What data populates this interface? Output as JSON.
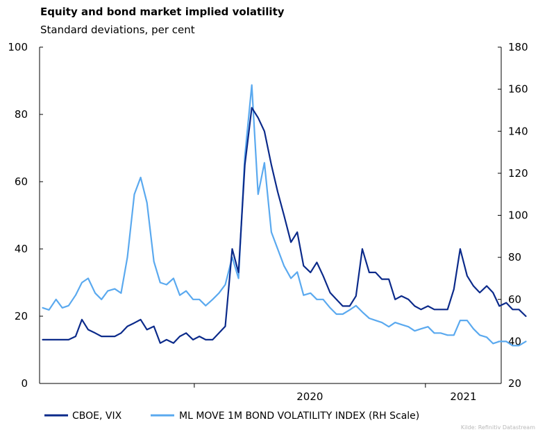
{
  "title": "Equity and bond market implied volatility",
  "subtitle": "Standard deviations, per cent",
  "source": "Kilde: Refinitiv Datastream",
  "colors": {
    "vix": "#0b2a8a",
    "move": "#5aa9ef",
    "axis": "#000000"
  },
  "chart_data": {
    "type": "line",
    "title": "Equity and bond market implied volatility",
    "subtitle": "Standard deviations, per cent",
    "x_unit": "month",
    "x_range": [
      "2019-05",
      "2021-05"
    ],
    "x_tick_labels": [
      {
        "label": "2020",
        "value": "2020-01"
      },
      {
        "label": "2021",
        "value": "2021-01"
      }
    ],
    "y_left": {
      "lim": [
        0,
        100
      ],
      "ticks": [
        0,
        20,
        40,
        60,
        80,
        100
      ]
    },
    "y_right": {
      "lim": [
        20,
        180
      ],
      "ticks": [
        20,
        40,
        60,
        80,
        100,
        120,
        140,
        160,
        180
      ]
    },
    "grid": false,
    "legend": "bottom",
    "series": [
      {
        "name": "CBOE, VIX",
        "axis": "left",
        "x": [
          "2019-05-06",
          "2019-05-16",
          "2019-05-27",
          "2019-06-06",
          "2019-06-16",
          "2019-06-27",
          "2019-07-07",
          "2019-07-17",
          "2019-07-28",
          "2019-08-07",
          "2019-08-17",
          "2019-08-28",
          "2019-09-07",
          "2019-09-17",
          "2019-09-28",
          "2019-10-08",
          "2019-10-18",
          "2019-10-29",
          "2019-11-08",
          "2019-11-18",
          "2019-11-29",
          "2019-12-09",
          "2019-12-19",
          "2019-12-30",
          "2020-01-09",
          "2020-01-19",
          "2020-01-30",
          "2020-02-09",
          "2020-02-19",
          "2020-03-01",
          "2020-03-11",
          "2020-03-21",
          "2020-04-01",
          "2020-04-11",
          "2020-04-21",
          "2020-05-02",
          "2020-05-12",
          "2020-05-22",
          "2020-06-02",
          "2020-06-12",
          "2020-06-22",
          "2020-07-03",
          "2020-07-13",
          "2020-07-23",
          "2020-08-03",
          "2020-08-13",
          "2020-08-23",
          "2020-09-03",
          "2020-09-13",
          "2020-09-23",
          "2020-10-04",
          "2020-10-14",
          "2020-10-24",
          "2020-11-04",
          "2020-11-14",
          "2020-11-24",
          "2020-12-05",
          "2020-12-15",
          "2020-12-25",
          "2021-01-05",
          "2021-01-15",
          "2021-01-25",
          "2021-02-05",
          "2021-02-15",
          "2021-02-25",
          "2021-03-08",
          "2021-03-18",
          "2021-03-28",
          "2021-04-08",
          "2021-04-18",
          "2021-04-28",
          "2021-05-09",
          "2021-05-19",
          "2021-05-29",
          "2021-06-09"
        ],
        "values": [
          13,
          13,
          13,
          13,
          13,
          14,
          19,
          16,
          15,
          14,
          14,
          14,
          15,
          17,
          18,
          19,
          16,
          17,
          12,
          13,
          12,
          14,
          15,
          13,
          14,
          13,
          13,
          15,
          17,
          40,
          33,
          65,
          82,
          79,
          75,
          65,
          57,
          50,
          42,
          45,
          35,
          33,
          36,
          32,
          27,
          25,
          23,
          23,
          26,
          40,
          33,
          33,
          31,
          31,
          25,
          26,
          25,
          23,
          22,
          23,
          22,
          22,
          22,
          28,
          40,
          32,
          29,
          27,
          29,
          27,
          23,
          24,
          22,
          22,
          20
        ]
      },
      {
        "name": "ML MOVE 1M BOND VOLATILITY INDEX (RH Scale)",
        "axis": "right",
        "x": [
          "2019-05-06",
          "2019-05-16",
          "2019-05-27",
          "2019-06-06",
          "2019-06-16",
          "2019-06-27",
          "2019-07-07",
          "2019-07-17",
          "2019-07-28",
          "2019-08-07",
          "2019-08-17",
          "2019-08-28",
          "2019-09-07",
          "2019-09-17",
          "2019-09-28",
          "2019-10-08",
          "2019-10-18",
          "2019-10-29",
          "2019-11-08",
          "2019-11-18",
          "2019-11-29",
          "2019-12-09",
          "2019-12-19",
          "2019-12-30",
          "2020-01-09",
          "2020-01-19",
          "2020-01-30",
          "2020-02-09",
          "2020-02-19",
          "2020-03-01",
          "2020-03-11",
          "2020-03-21",
          "2020-04-01",
          "2020-04-11",
          "2020-04-21",
          "2020-05-02",
          "2020-05-12",
          "2020-05-22",
          "2020-06-02",
          "2020-06-12",
          "2020-06-22",
          "2020-07-03",
          "2020-07-13",
          "2020-07-23",
          "2020-08-03",
          "2020-08-13",
          "2020-08-23",
          "2020-09-03",
          "2020-09-13",
          "2020-09-23",
          "2020-10-04",
          "2020-10-14",
          "2020-10-24",
          "2020-11-04",
          "2020-11-14",
          "2020-11-24",
          "2020-12-05",
          "2020-12-15",
          "2020-12-25",
          "2021-01-05",
          "2021-01-15",
          "2021-01-25",
          "2021-02-05",
          "2021-02-15",
          "2021-02-25",
          "2021-03-08",
          "2021-03-18",
          "2021-03-28",
          "2021-04-08",
          "2021-04-18",
          "2021-04-28",
          "2021-05-09",
          "2021-05-19",
          "2021-05-29",
          "2021-06-09"
        ],
        "values": [
          56,
          55,
          60,
          56,
          57,
          62,
          68,
          70,
          63,
          60,
          64,
          65,
          63,
          80,
          110,
          118,
          106,
          78,
          68,
          67,
          70,
          62,
          64,
          60,
          60,
          57,
          60,
          63,
          67,
          80,
          70,
          128,
          162,
          110,
          125,
          92,
          84,
          76,
          70,
          73,
          62,
          63,
          60,
          60,
          56,
          53,
          53,
          55,
          57,
          54,
          51,
          50,
          49,
          47,
          49,
          48,
          47,
          45,
          46,
          47,
          44,
          44,
          43,
          43,
          50,
          50,
          46,
          43,
          42,
          39,
          40,
          40,
          38,
          38,
          40
        ]
      }
    ]
  }
}
